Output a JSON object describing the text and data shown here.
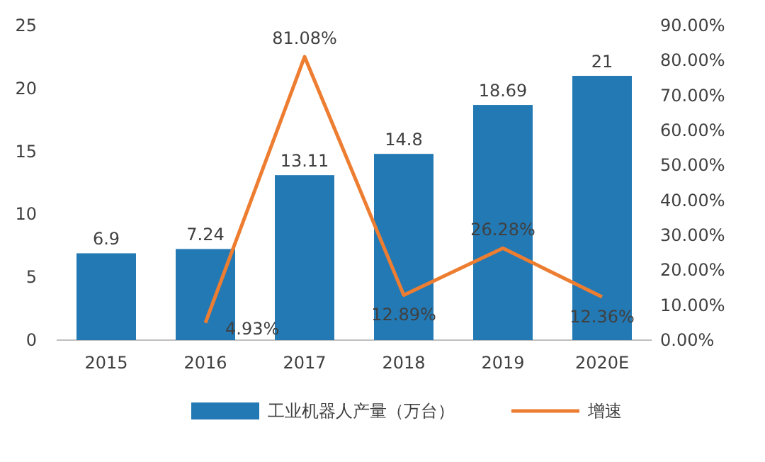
{
  "chart_data": {
    "type": "bar",
    "categories": [
      "2015",
      "2016",
      "2017",
      "2018",
      "2019",
      "2020E"
    ],
    "series": [
      {
        "name": "工业机器人产量（万台）",
        "color": "#2379b4",
        "values": [
          6.9,
          7.24,
          13.11,
          14.8,
          18.69,
          21
        ],
        "value_labels": [
          "6.9",
          "7.24",
          "13.11",
          "14.8",
          "18.69",
          "21"
        ]
      },
      {
        "name": "增速",
        "type": "line",
        "axis": "y2",
        "color": "#ed7d31",
        "values": [
          null,
          4.93,
          81.08,
          12.89,
          26.28,
          12.36
        ],
        "value_labels": [
          null,
          "4.93%",
          "81.08%",
          "12.89%",
          "26.28%",
          "12.36%"
        ]
      }
    ],
    "ylim": [
      0,
      25
    ],
    "yticks": [
      0,
      5,
      10,
      15,
      20,
      25
    ],
    "y2lim": [
      0,
      90
    ],
    "y2ticks": [
      {
        "value": 0,
        "label": "0.00%"
      },
      {
        "value": 10,
        "label": "10.00%"
      },
      {
        "value": 20,
        "label": "20.00%"
      },
      {
        "value": 30,
        "label": "30.00%"
      },
      {
        "value": 40,
        "label": "40.00%"
      },
      {
        "value": 50,
        "label": "50.00%"
      },
      {
        "value": 60,
        "label": "60.00%"
      },
      {
        "value": 70,
        "label": "70.00%"
      },
      {
        "value": 80,
        "label": "80.00%"
      },
      {
        "value": 90,
        "label": "90.00%"
      }
    ],
    "legend": "bottom",
    "grid": false
  }
}
